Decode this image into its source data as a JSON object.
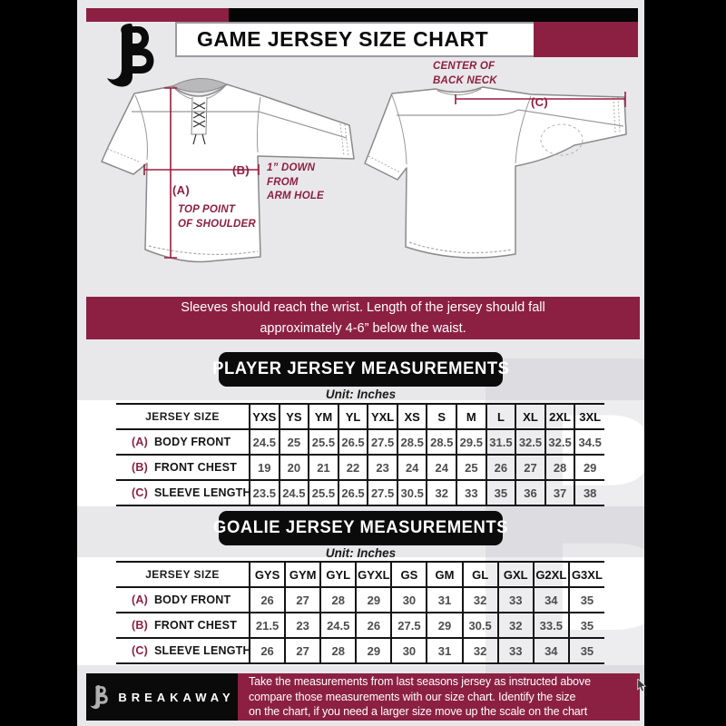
{
  "header": {
    "title": "GAME JERSEY SIZE CHART",
    "logo": "breakaway-b-logo"
  },
  "diagram": {
    "front": {
      "label_a": "(A)",
      "note_a": "TOP POINT\nOF SHOULDER",
      "label_b": "(B)",
      "note_b": "1” DOWN\nFROM\nARM HOLE"
    },
    "back": {
      "label_c": "(C)",
      "note_c": "CENTER OF\nBACK NECK"
    }
  },
  "banner": {
    "text": "Sleeves should reach the wrist. Length of the jersey should fall\napproximately 4-6” below the waist."
  },
  "player_section": {
    "title": "PLAYER JERSEY MEASUREMENTS",
    "unit": "Unit: Inches",
    "table": {
      "corner": "JERSEY SIZE",
      "sizes": [
        "YXS",
        "YS",
        "YM",
        "YL",
        "YXL",
        "XS",
        "S",
        "M",
        "L",
        "XL",
        "2XL",
        "3XL"
      ],
      "rows": [
        {
          "key": "(A)",
          "label": "BODY FRONT",
          "values": [
            "24.5",
            "25",
            "25.5",
            "26.5",
            "27.5",
            "28.5",
            "28.5",
            "29.5",
            "31.5",
            "32.5",
            "32.5",
            "34.5"
          ]
        },
        {
          "key": "(B)",
          "label": "FRONT CHEST",
          "values": [
            "19",
            "20",
            "21",
            "22",
            "23",
            "24",
            "24",
            "25",
            "26",
            "27",
            "28",
            "29"
          ]
        },
        {
          "key": "(C)",
          "label": "SLEEVE LENGTH",
          "values": [
            "23.5",
            "24.5",
            "25.5",
            "26.5",
            "27.5",
            "30.5",
            "32",
            "33",
            "35",
            "36",
            "37",
            "38"
          ]
        }
      ]
    }
  },
  "goalie_section": {
    "title": "GOALIE JERSEY MEASUREMENTS",
    "unit": "Unit: Inches",
    "table": {
      "corner": "JERSEY SIZE",
      "sizes": [
        "GYS",
        "GYM",
        "GYL",
        "GYXL",
        "GS",
        "GM",
        "GL",
        "GXL",
        "G2XL",
        "G3XL"
      ],
      "rows": [
        {
          "key": "(A)",
          "label": "BODY FRONT",
          "values": [
            "26",
            "27",
            "28",
            "29",
            "30",
            "31",
            "32",
            "33",
            "34",
            "35"
          ]
        },
        {
          "key": "(B)",
          "label": "FRONT CHEST",
          "values": [
            "21.5",
            "23",
            "24.5",
            "26",
            "27.5",
            "29",
            "30.5",
            "32",
            "33.5",
            "35"
          ]
        },
        {
          "key": "(C)",
          "label": "SLEEVE LENGTH",
          "values": [
            "26",
            "27",
            "28",
            "29",
            "30",
            "31",
            "32",
            "33",
            "34",
            "35"
          ]
        }
      ]
    }
  },
  "footer": {
    "brand": "BREAKAWAY",
    "text": "Take the measurements from last seasons jersey as instructed above\ncompare those measurements  with our size chart. Identify the size\non the chart, if you need a larger size move up the scale on the chart"
  },
  "colors": {
    "maroon": "#8C2043",
    "background": "#E8E8EA",
    "black": "#000000",
    "table_number_gray": "#4D4D4D",
    "measure_line": "#9D1C3E"
  }
}
